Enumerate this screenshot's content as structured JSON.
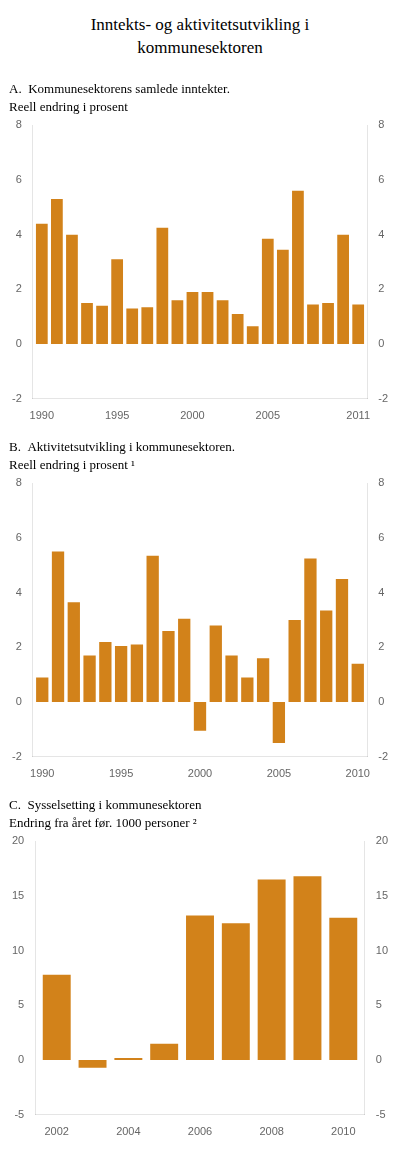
{
  "title": "Inntekts- og aktivitetsutvikling i\nkommunesektoren",
  "chart_data": [
    {
      "type": "bar",
      "title": "A.  Kommunesektorens samlede inntekter.",
      "subtitle": "Reell endring i prosent",
      "x": [
        1990,
        1991,
        1992,
        1993,
        1994,
        1995,
        1996,
        1997,
        1998,
        1999,
        2000,
        2001,
        2002,
        2003,
        2004,
        2005,
        2006,
        2007,
        2008,
        2009,
        2010,
        2011
      ],
      "values": [
        4.4,
        5.3,
        4.0,
        1.5,
        1.4,
        3.1,
        1.3,
        1.35,
        4.25,
        1.6,
        1.9,
        1.9,
        1.6,
        1.1,
        0.65,
        3.85,
        3.45,
        5.6,
        1.45,
        1.5,
        4.0,
        1.45
      ],
      "color": "#D2821A",
      "xlim": [
        1989.4,
        2011.6
      ],
      "xticks": [
        1990,
        1995,
        2000,
        2005,
        2011
      ],
      "ylim": [
        -2,
        8
      ],
      "yticks": [
        -2,
        0,
        2,
        4,
        6,
        8
      ],
      "y2lim": [
        -2,
        8
      ],
      "y2ticks": [
        -2,
        0,
        2,
        4,
        6,
        8
      ],
      "grid": false
    },
    {
      "type": "bar",
      "title": "B.  Aktivitetsutvikling i kommunesektoren.",
      "subtitle": "Reell endring i prosent ¹",
      "x": [
        1990,
        1991,
        1992,
        1993,
        1994,
        1995,
        1996,
        1997,
        1998,
        1999,
        2000,
        2001,
        2002,
        2003,
        2004,
        2005,
        2006,
        2007,
        2008,
        2009,
        2010
      ],
      "values": [
        0.9,
        5.5,
        3.65,
        1.7,
        2.2,
        2.05,
        2.1,
        5.35,
        2.6,
        3.05,
        -1.05,
        2.8,
        1.7,
        0.9,
        1.6,
        -1.5,
        3.0,
        5.25,
        3.35,
        4.5,
        1.4
      ],
      "color": "#D2821A",
      "xlim": [
        1989.4,
        2010.6
      ],
      "xticks": [
        1990,
        1995,
        2000,
        2005,
        2010
      ],
      "ylim": [
        -2,
        8
      ],
      "yticks": [
        -2,
        0,
        2,
        4,
        6,
        8
      ],
      "y2lim": [
        -2,
        8
      ],
      "y2ticks": [
        -2,
        0,
        2,
        4,
        6,
        8
      ],
      "grid": false
    },
    {
      "type": "bar",
      "title": "C.  Sysselsetting i kommunesektoren",
      "subtitle": "Endring fra året før. 1000 personer ²",
      "x": [
        2002,
        2003,
        2004,
        2005,
        2006,
        2007,
        2008,
        2009,
        2010
      ],
      "values": [
        7.8,
        -0.7,
        0.2,
        1.5,
        13.2,
        12.5,
        16.5,
        16.8,
        13.0
      ],
      "color": "#D2821A",
      "xlim": [
        2001.4,
        2010.6
      ],
      "xticks": [
        2002,
        2004,
        2006,
        2008,
        2010
      ],
      "ylim": [
        -5,
        20
      ],
      "yticks": [
        -5,
        0,
        5,
        10,
        15,
        20
      ],
      "y2lim": [
        -5,
        20
      ],
      "y2ticks": [
        -5,
        0,
        5,
        10,
        15,
        20
      ],
      "grid": false
    }
  ]
}
